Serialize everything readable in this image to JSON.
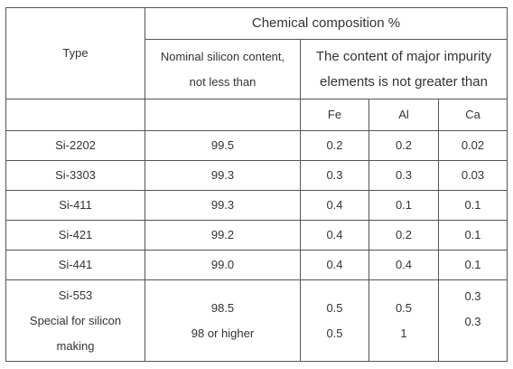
{
  "header": {
    "type": "Type",
    "chemical_composition": "Chemical composition %",
    "nominal_silicon_line1": "Nominal silicon content,",
    "nominal_silicon_line2": "not less than",
    "impurity_line1": "The content of major impurity",
    "impurity_line2": "elements is not greater than",
    "fe": "Fe",
    "al": "Al",
    "ca": "Ca"
  },
  "rows": [
    {
      "type": "Si-2202",
      "si": "99.5",
      "fe": "0.2",
      "al": "0.2",
      "ca": "0.02"
    },
    {
      "type": "Si-3303",
      "si": "99.3",
      "fe": "0.3",
      "al": "0.3",
      "ca": "0.03"
    },
    {
      "type": "Si-411",
      "si": "99.3",
      "fe": "0.4",
      "al": "0.1",
      "ca": "0.1"
    },
    {
      "type": "Si-421",
      "si": "99.2",
      "fe": "0.4",
      "al": "0.2",
      "ca": "0.1"
    },
    {
      "type": "Si-441",
      "si": "99.0",
      "fe": "0.4",
      "al": "0.4",
      "ca": "0.1"
    }
  ],
  "last_row": {
    "type_line1": "Si-553",
    "type_line2": "Special for silicon",
    "type_line3": "making",
    "si_line1": "98.5",
    "si_line2": "98 or higher",
    "fe_line1": "0.5",
    "fe_line2": "0.5",
    "al_line1": "0.5",
    "al_line2": "1",
    "ca_line1": "0.3",
    "ca_line2": "0.3"
  }
}
